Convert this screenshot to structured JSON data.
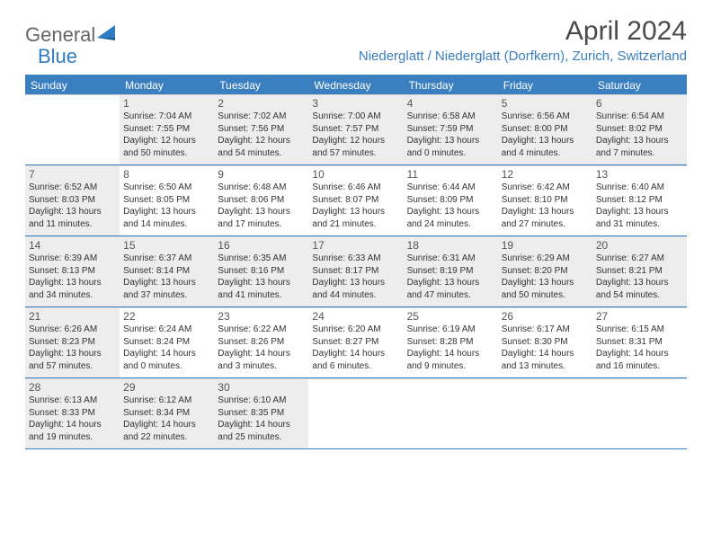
{
  "brand": {
    "name1": "General",
    "name2": "Blue"
  },
  "title": "April 2024",
  "location": "Niederglatt / Niederglatt (Dorfkern), Zurich, Switzerland",
  "colors": {
    "accent": "#3a7fbf",
    "header_bg": "#3a7fbf",
    "shaded_bg": "#ededed",
    "text": "#333333",
    "title_text": "#4a4a4a",
    "logo_gray": "#676767"
  },
  "weekdays": [
    "Sunday",
    "Monday",
    "Tuesday",
    "Wednesday",
    "Thursday",
    "Friday",
    "Saturday"
  ],
  "weeks": [
    [
      {
        "day": "",
        "sunrise": "",
        "sunset": "",
        "daylight": "",
        "shaded": false
      },
      {
        "day": "1",
        "sunrise": "Sunrise: 7:04 AM",
        "sunset": "Sunset: 7:55 PM",
        "daylight": "Daylight: 12 hours and 50 minutes.",
        "shaded": true
      },
      {
        "day": "2",
        "sunrise": "Sunrise: 7:02 AM",
        "sunset": "Sunset: 7:56 PM",
        "daylight": "Daylight: 12 hours and 54 minutes.",
        "shaded": true
      },
      {
        "day": "3",
        "sunrise": "Sunrise: 7:00 AM",
        "sunset": "Sunset: 7:57 PM",
        "daylight": "Daylight: 12 hours and 57 minutes.",
        "shaded": true
      },
      {
        "day": "4",
        "sunrise": "Sunrise: 6:58 AM",
        "sunset": "Sunset: 7:59 PM",
        "daylight": "Daylight: 13 hours and 0 minutes.",
        "shaded": true
      },
      {
        "day": "5",
        "sunrise": "Sunrise: 6:56 AM",
        "sunset": "Sunset: 8:00 PM",
        "daylight": "Daylight: 13 hours and 4 minutes.",
        "shaded": true
      },
      {
        "day": "6",
        "sunrise": "Sunrise: 6:54 AM",
        "sunset": "Sunset: 8:02 PM",
        "daylight": "Daylight: 13 hours and 7 minutes.",
        "shaded": true
      }
    ],
    [
      {
        "day": "7",
        "sunrise": "Sunrise: 6:52 AM",
        "sunset": "Sunset: 8:03 PM",
        "daylight": "Daylight: 13 hours and 11 minutes.",
        "shaded": true
      },
      {
        "day": "8",
        "sunrise": "Sunrise: 6:50 AM",
        "sunset": "Sunset: 8:05 PM",
        "daylight": "Daylight: 13 hours and 14 minutes.",
        "shaded": false
      },
      {
        "day": "9",
        "sunrise": "Sunrise: 6:48 AM",
        "sunset": "Sunset: 8:06 PM",
        "daylight": "Daylight: 13 hours and 17 minutes.",
        "shaded": false
      },
      {
        "day": "10",
        "sunrise": "Sunrise: 6:46 AM",
        "sunset": "Sunset: 8:07 PM",
        "daylight": "Daylight: 13 hours and 21 minutes.",
        "shaded": false
      },
      {
        "day": "11",
        "sunrise": "Sunrise: 6:44 AM",
        "sunset": "Sunset: 8:09 PM",
        "daylight": "Daylight: 13 hours and 24 minutes.",
        "shaded": false
      },
      {
        "day": "12",
        "sunrise": "Sunrise: 6:42 AM",
        "sunset": "Sunset: 8:10 PM",
        "daylight": "Daylight: 13 hours and 27 minutes.",
        "shaded": false
      },
      {
        "day": "13",
        "sunrise": "Sunrise: 6:40 AM",
        "sunset": "Sunset: 8:12 PM",
        "daylight": "Daylight: 13 hours and 31 minutes.",
        "shaded": false
      }
    ],
    [
      {
        "day": "14",
        "sunrise": "Sunrise: 6:39 AM",
        "sunset": "Sunset: 8:13 PM",
        "daylight": "Daylight: 13 hours and 34 minutes.",
        "shaded": true
      },
      {
        "day": "15",
        "sunrise": "Sunrise: 6:37 AM",
        "sunset": "Sunset: 8:14 PM",
        "daylight": "Daylight: 13 hours and 37 minutes.",
        "shaded": true
      },
      {
        "day": "16",
        "sunrise": "Sunrise: 6:35 AM",
        "sunset": "Sunset: 8:16 PM",
        "daylight": "Daylight: 13 hours and 41 minutes.",
        "shaded": true
      },
      {
        "day": "17",
        "sunrise": "Sunrise: 6:33 AM",
        "sunset": "Sunset: 8:17 PM",
        "daylight": "Daylight: 13 hours and 44 minutes.",
        "shaded": true
      },
      {
        "day": "18",
        "sunrise": "Sunrise: 6:31 AM",
        "sunset": "Sunset: 8:19 PM",
        "daylight": "Daylight: 13 hours and 47 minutes.",
        "shaded": true
      },
      {
        "day": "19",
        "sunrise": "Sunrise: 6:29 AM",
        "sunset": "Sunset: 8:20 PM",
        "daylight": "Daylight: 13 hours and 50 minutes.",
        "shaded": true
      },
      {
        "day": "20",
        "sunrise": "Sunrise: 6:27 AM",
        "sunset": "Sunset: 8:21 PM",
        "daylight": "Daylight: 13 hours and 54 minutes.",
        "shaded": true
      }
    ],
    [
      {
        "day": "21",
        "sunrise": "Sunrise: 6:26 AM",
        "sunset": "Sunset: 8:23 PM",
        "daylight": "Daylight: 13 hours and 57 minutes.",
        "shaded": true
      },
      {
        "day": "22",
        "sunrise": "Sunrise: 6:24 AM",
        "sunset": "Sunset: 8:24 PM",
        "daylight": "Daylight: 14 hours and 0 minutes.",
        "shaded": false
      },
      {
        "day": "23",
        "sunrise": "Sunrise: 6:22 AM",
        "sunset": "Sunset: 8:26 PM",
        "daylight": "Daylight: 14 hours and 3 minutes.",
        "shaded": false
      },
      {
        "day": "24",
        "sunrise": "Sunrise: 6:20 AM",
        "sunset": "Sunset: 8:27 PM",
        "daylight": "Daylight: 14 hours and 6 minutes.",
        "shaded": false
      },
      {
        "day": "25",
        "sunrise": "Sunrise: 6:19 AM",
        "sunset": "Sunset: 8:28 PM",
        "daylight": "Daylight: 14 hours and 9 minutes.",
        "shaded": false
      },
      {
        "day": "26",
        "sunrise": "Sunrise: 6:17 AM",
        "sunset": "Sunset: 8:30 PM",
        "daylight": "Daylight: 14 hours and 13 minutes.",
        "shaded": false
      },
      {
        "day": "27",
        "sunrise": "Sunrise: 6:15 AM",
        "sunset": "Sunset: 8:31 PM",
        "daylight": "Daylight: 14 hours and 16 minutes.",
        "shaded": false
      }
    ],
    [
      {
        "day": "28",
        "sunrise": "Sunrise: 6:13 AM",
        "sunset": "Sunset: 8:33 PM",
        "daylight": "Daylight: 14 hours and 19 minutes.",
        "shaded": true
      },
      {
        "day": "29",
        "sunrise": "Sunrise: 6:12 AM",
        "sunset": "Sunset: 8:34 PM",
        "daylight": "Daylight: 14 hours and 22 minutes.",
        "shaded": true
      },
      {
        "day": "30",
        "sunrise": "Sunrise: 6:10 AM",
        "sunset": "Sunset: 8:35 PM",
        "daylight": "Daylight: 14 hours and 25 minutes.",
        "shaded": true
      },
      {
        "day": "",
        "sunrise": "",
        "sunset": "",
        "daylight": "",
        "shaded": false
      },
      {
        "day": "",
        "sunrise": "",
        "sunset": "",
        "daylight": "",
        "shaded": false
      },
      {
        "day": "",
        "sunrise": "",
        "sunset": "",
        "daylight": "",
        "shaded": false
      },
      {
        "day": "",
        "sunrise": "",
        "sunset": "",
        "daylight": "",
        "shaded": false
      }
    ]
  ]
}
